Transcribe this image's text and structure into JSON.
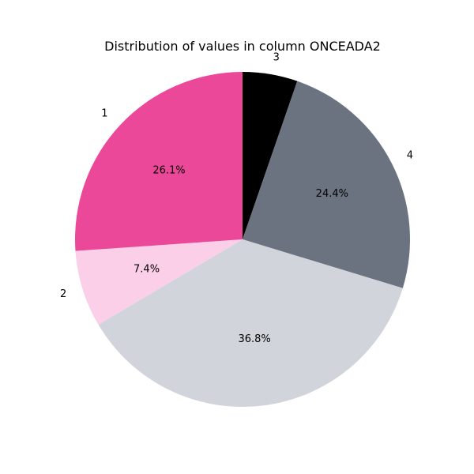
{
  "chart_data": {
    "type": "pie",
    "title": "Distribution of values in column ONCEADA2",
    "slices": [
      {
        "label": "3",
        "percent": 5.3,
        "pct_label": "",
        "color": "#000000"
      },
      {
        "label": "4",
        "percent": 24.4,
        "pct_label": "24.4%",
        "color": "#6b7280"
      },
      {
        "label": "",
        "percent": 36.8,
        "pct_label": "36.8%",
        "color": "#d1d5db"
      },
      {
        "label": "2",
        "percent": 7.4,
        "pct_label": "7.4%",
        "color": "#fbcfe8"
      },
      {
        "label": "1",
        "percent": 26.1,
        "pct_label": "26.1%",
        "color": "#ec4899"
      }
    ],
    "start_angle_deg": 90,
    "direction": "clockwise"
  }
}
